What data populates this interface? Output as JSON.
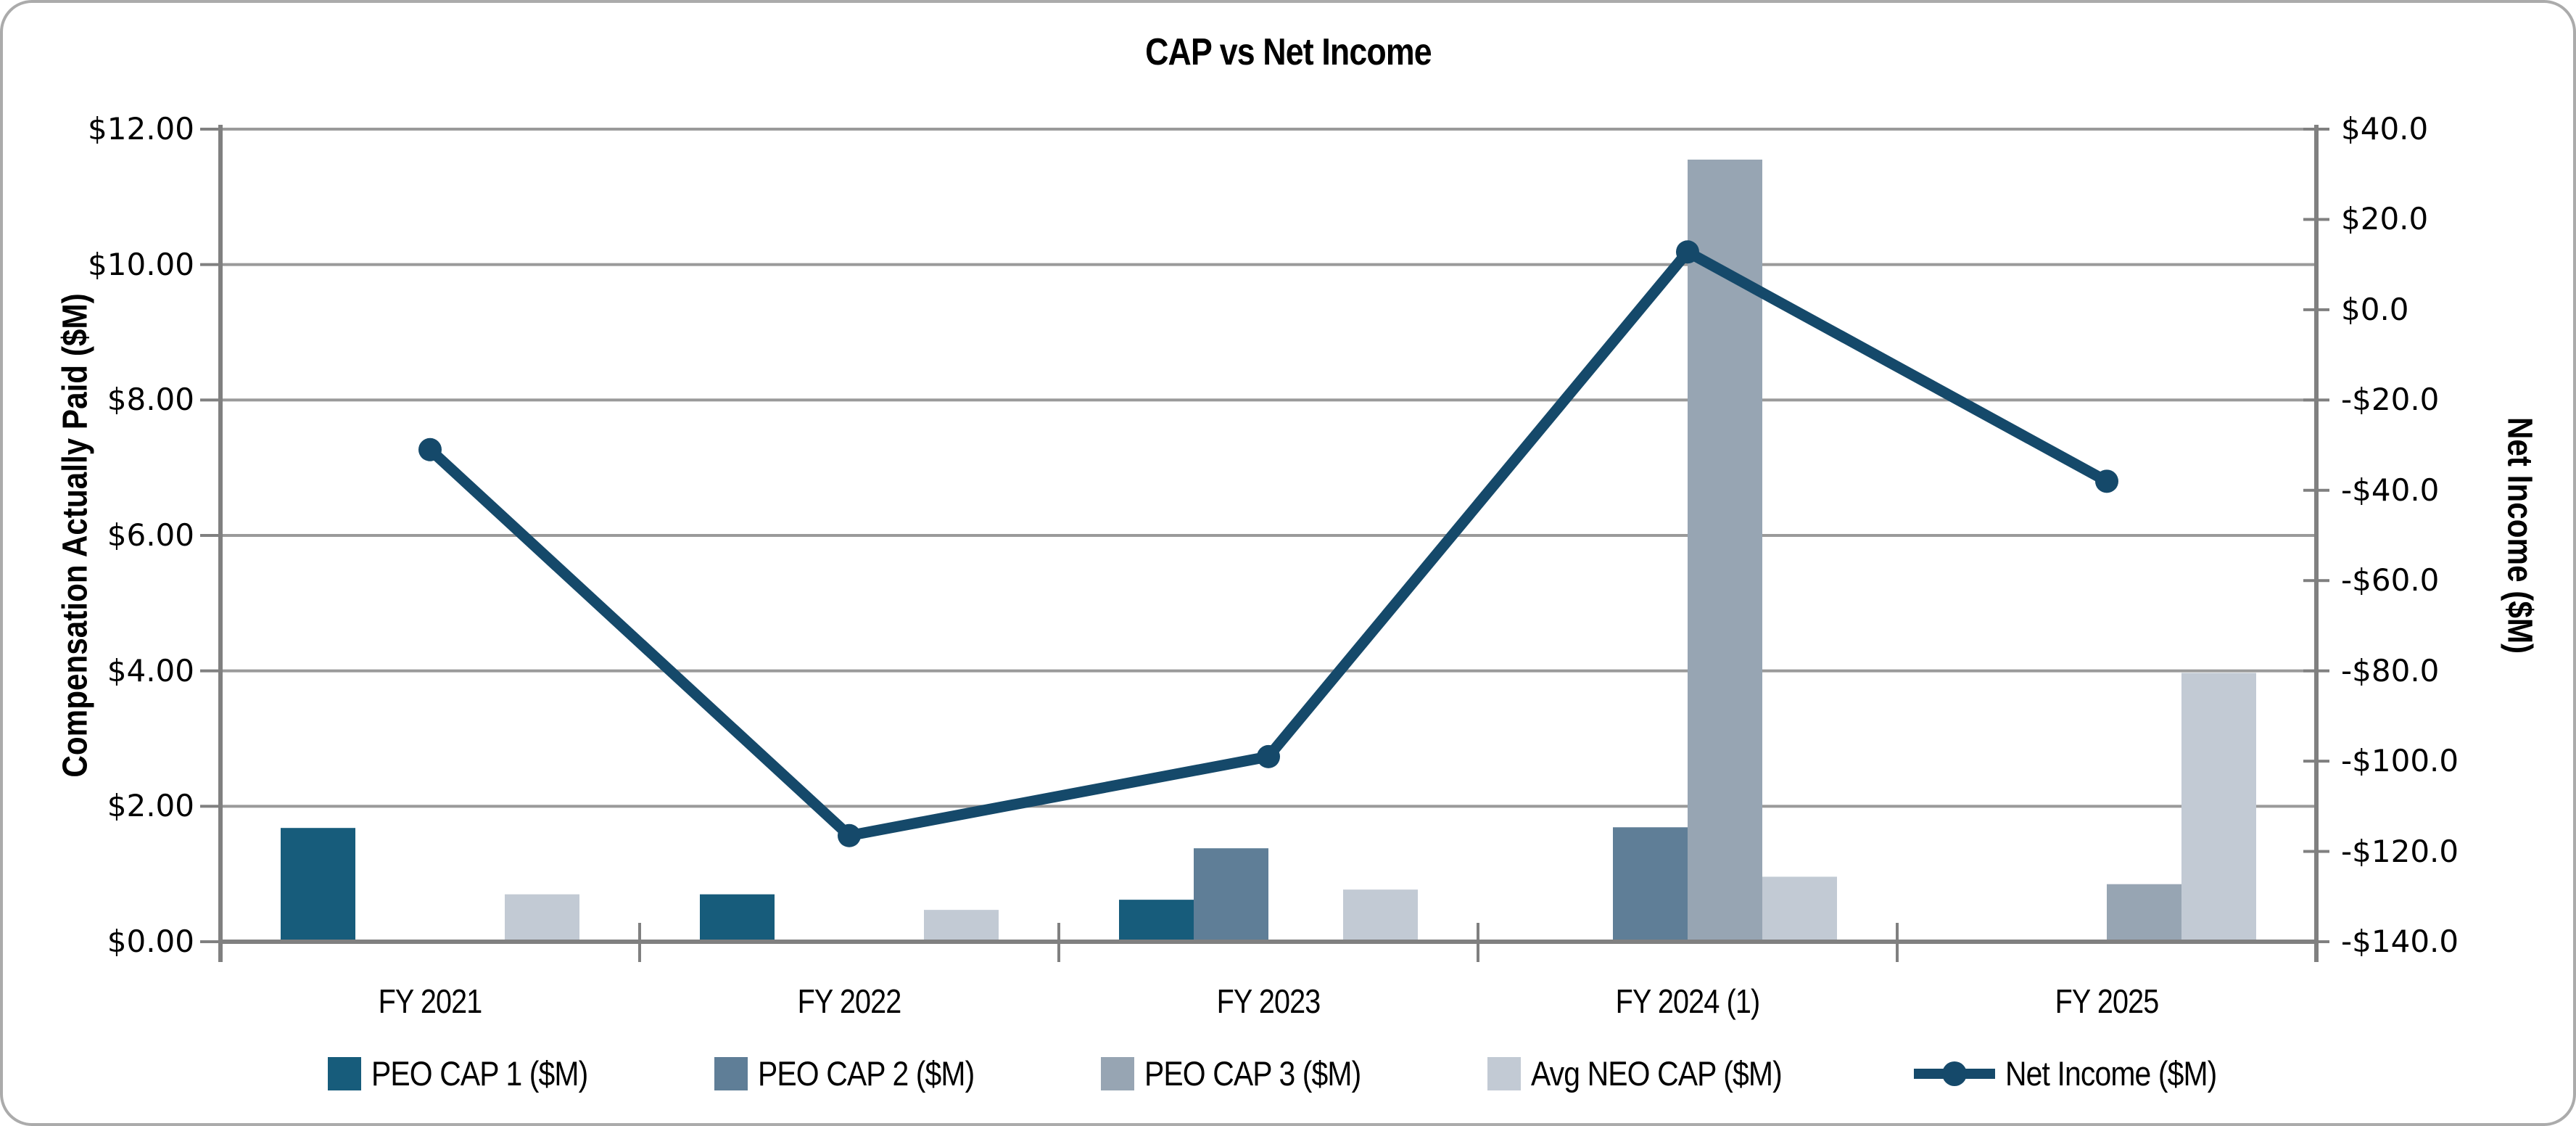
{
  "title": "CAP vs Net Income",
  "left_axis": {
    "title": "Compensation Actually Paid ($M)",
    "tick_labels": [
      "$12.00",
      "$10.00",
      "$8.00",
      "$6.00",
      "$4.00",
      "$2.00",
      "$0.00"
    ],
    "min": 0,
    "max": 12,
    "step": 2
  },
  "right_axis": {
    "title": "Net Income ($M)",
    "tick_labels": [
      "$40.0",
      "$20.0",
      "$0.0",
      "-$20.0",
      "-$40.0",
      "-$60.0",
      "-$80.0",
      "-$100.0",
      "-$120.0",
      "-$140.0"
    ],
    "min": -140,
    "max": 40,
    "step": 20
  },
  "colors": {
    "peo_cap_1": "#175c7b",
    "peo_cap_2": "#5f7e97",
    "peo_cap_3": "#97a5b3",
    "avg_neo_cap": "#c2cad4",
    "net_income_line": "#15496a",
    "gridline": "#9a9a9a",
    "axis": "#808080",
    "text": "#000000",
    "frame_border": "#ababab"
  },
  "chart_data": {
    "type": "bar",
    "subtype": "combo bar + line, dual y-axes",
    "title": "CAP vs Net Income",
    "categories": [
      "FY 2021",
      "FY 2022",
      "FY 2023",
      "FY 2024 (1)",
      "FY 2025"
    ],
    "series": [
      {
        "name": "PEO CAP 1 ($M)",
        "type": "bar",
        "axis": "left",
        "color": "#175c7b",
        "values": [
          1.68,
          0.7,
          0.62,
          null,
          null
        ]
      },
      {
        "name": "PEO CAP 2 ($M)",
        "type": "bar",
        "axis": "left",
        "color": "#5f7e97",
        "values": [
          null,
          null,
          1.38,
          1.69,
          null
        ]
      },
      {
        "name": "PEO CAP 3 ($M)",
        "type": "bar",
        "axis": "left",
        "color": "#97a5b3",
        "values": [
          null,
          null,
          null,
          11.55,
          0.85
        ]
      },
      {
        "name": "Avg NEO CAP ($M)",
        "type": "bar",
        "axis": "left",
        "color": "#c2cad4",
        "values": [
          0.7,
          0.47,
          0.77,
          0.96,
          3.97
        ]
      },
      {
        "name": "Net Income ($M)",
        "type": "line",
        "axis": "right",
        "color": "#15496a",
        "values": [
          -31.0,
          -116.5,
          -99.0,
          12.8,
          -38.0
        ]
      }
    ],
    "xlabel": "",
    "ylabel_left": "Compensation Actually Paid ($M)",
    "ylabel_right": "Net Income ($M)",
    "ylim_left": [
      0,
      12
    ],
    "ylim_right": [
      -140,
      40
    ],
    "grid": "horizontal gridlines at every $2.00 of left axis",
    "legend_position": "bottom"
  }
}
